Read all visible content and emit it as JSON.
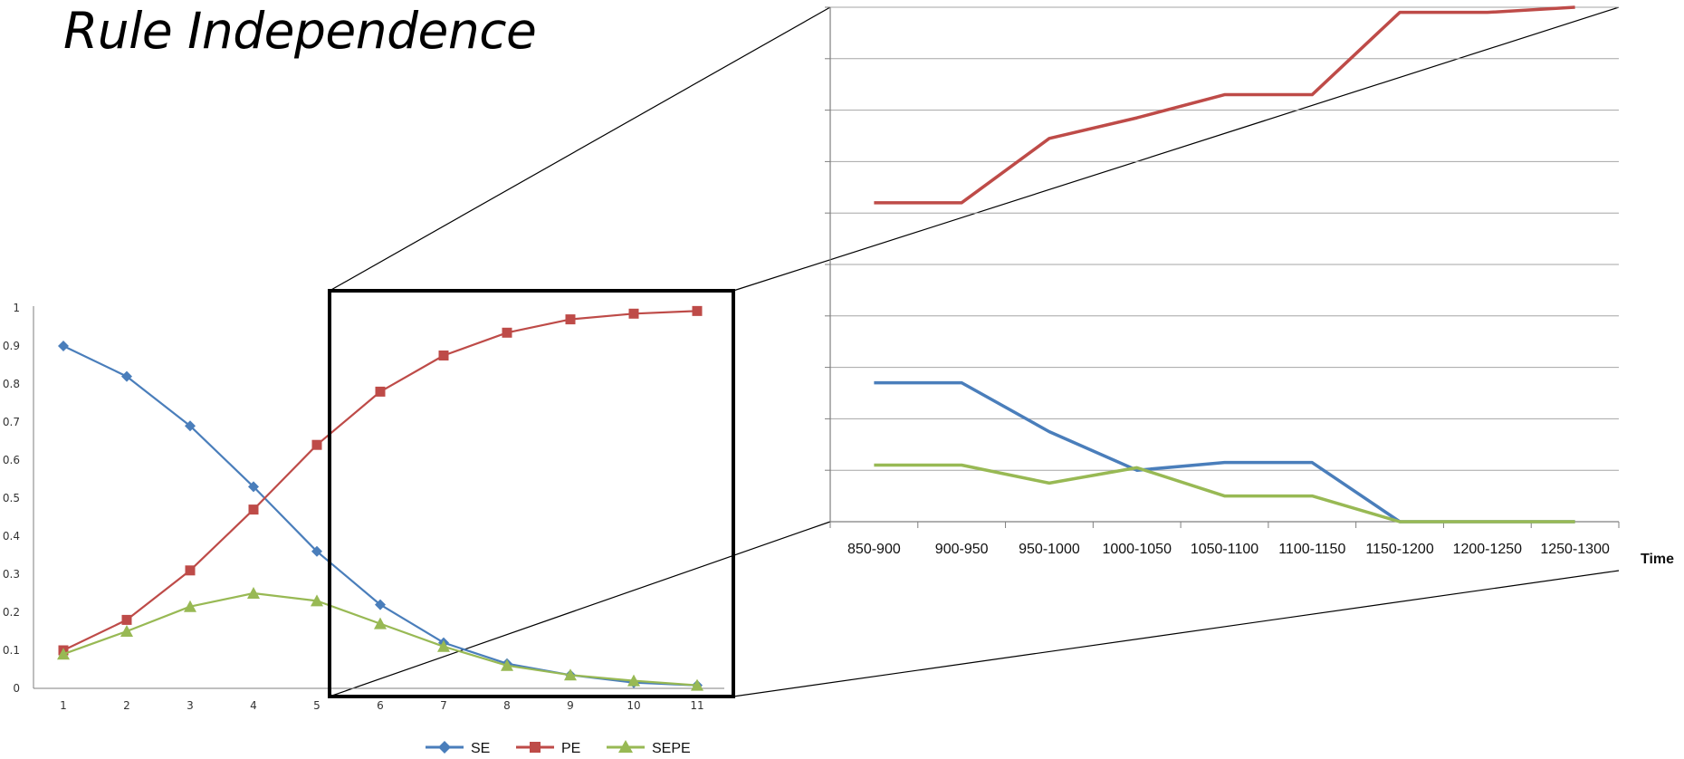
{
  "title": "Rule Independence",
  "colors": {
    "SE": "#4a7ebb",
    "PE": "#be4b48",
    "SEPE": "#98b954",
    "grid": "#a6a6a6",
    "axis": "#7f7f7f",
    "frame": "#000000"
  },
  "chart_data": [
    {
      "type": "line",
      "title": "",
      "xlabel": "",
      "ylabel": "",
      "categories": [
        "1",
        "2",
        "3",
        "4",
        "5",
        "6",
        "7",
        "8",
        "9",
        "10",
        "11"
      ],
      "y_ticks": [
        "0",
        "0.1",
        "0.2",
        "0.3",
        "0.4",
        "0.5",
        "0.6",
        "0.7",
        "0.8",
        "0.9",
        "1"
      ],
      "ylim": [
        0,
        1
      ],
      "grid": false,
      "legend": "bottom",
      "series": [
        {
          "name": "SE",
          "marker": "diamond",
          "values": [
            0.9,
            0.82,
            0.69,
            0.53,
            0.36,
            0.22,
            0.12,
            0.065,
            0.035,
            0.015,
            0.008
          ]
        },
        {
          "name": "PE",
          "marker": "square",
          "values": [
            0.1,
            0.18,
            0.31,
            0.47,
            0.64,
            0.78,
            0.875,
            0.935,
            0.97,
            0.985,
            0.992
          ]
        },
        {
          "name": "SEPE",
          "marker": "triangle",
          "values": [
            0.09,
            0.15,
            0.215,
            0.25,
            0.23,
            0.17,
            0.11,
            0.06,
            0.035,
            0.02,
            0.008
          ]
        }
      ],
      "zoom_range": [
        "5",
        "11"
      ]
    },
    {
      "type": "line",
      "title": "",
      "xlabel": "Time",
      "ylabel": "",
      "categories": [
        "850-900",
        "900-950",
        "950-1000",
        "1000-1050",
        "1050-1100",
        "1100-1150",
        "1150-1200",
        "1200-1250",
        "1250-1300"
      ],
      "ylim": [
        0,
        10
      ],
      "grid": true,
      "legend": "none",
      "series": [
        {
          "name": "SE",
          "values": [
            2.7,
            2.7,
            1.75,
            1.0,
            1.15,
            1.15,
            0.0,
            0.0,
            0.0
          ]
        },
        {
          "name": "PE",
          "values": [
            6.2,
            6.2,
            7.45,
            7.85,
            8.3,
            8.3,
            9.9,
            9.9,
            10.0
          ]
        },
        {
          "name": "SEPE",
          "values": [
            1.1,
            1.1,
            0.75,
            1.05,
            0.5,
            0.5,
            0.0,
            0.0,
            0.0
          ]
        }
      ]
    }
  ]
}
